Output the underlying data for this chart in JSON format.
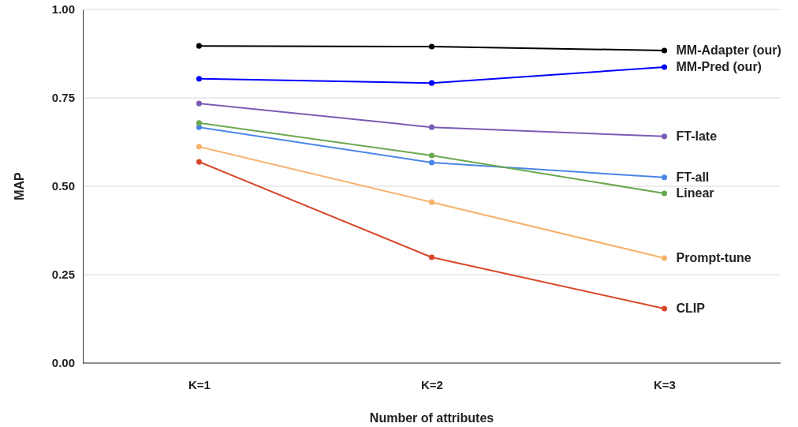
{
  "chart_data": {
    "type": "line",
    "xlabel": "Number of attributes",
    "ylabel": "MAP",
    "categories": [
      "K=1",
      "K=2",
      "K=3"
    ],
    "ylim": [
      0,
      1
    ],
    "yticks": [
      {
        "value": 0,
        "label": "0.00"
      },
      {
        "value": 0.25,
        "label": "0.25"
      },
      {
        "value": 0.5,
        "label": "0.50"
      },
      {
        "value": 0.75,
        "label": "0.75"
      },
      {
        "value": 1,
        "label": "1.00"
      }
    ],
    "grid": "y",
    "marker": "circle",
    "line_style": "solid",
    "series": [
      {
        "name": "MM-Adapter (our)",
        "color": "#000000",
        "values": [
          0.897,
          0.895,
          0.884
        ]
      },
      {
        "name": "MM-Pred (our)",
        "color": "#0000ff",
        "values": [
          0.804,
          0.792,
          0.837
        ]
      },
      {
        "name": "FT-late",
        "color": "#7b5cb5",
        "values": [
          0.734,
          0.667,
          0.641
        ]
      },
      {
        "name": "FT-all",
        "color": "#4a86e8",
        "values": [
          0.667,
          0.567,
          0.525
        ]
      },
      {
        "name": "Linear",
        "color": "#6aa84f",
        "values": [
          0.679,
          0.587,
          0.48
        ]
      },
      {
        "name": "Prompt-tune",
        "color": "#f6b26b",
        "values": [
          0.612,
          0.455,
          0.297
        ]
      },
      {
        "name": "CLIP",
        "color": "#d9482b",
        "values": [
          0.569,
          0.299,
          0.154
        ]
      }
    ]
  }
}
